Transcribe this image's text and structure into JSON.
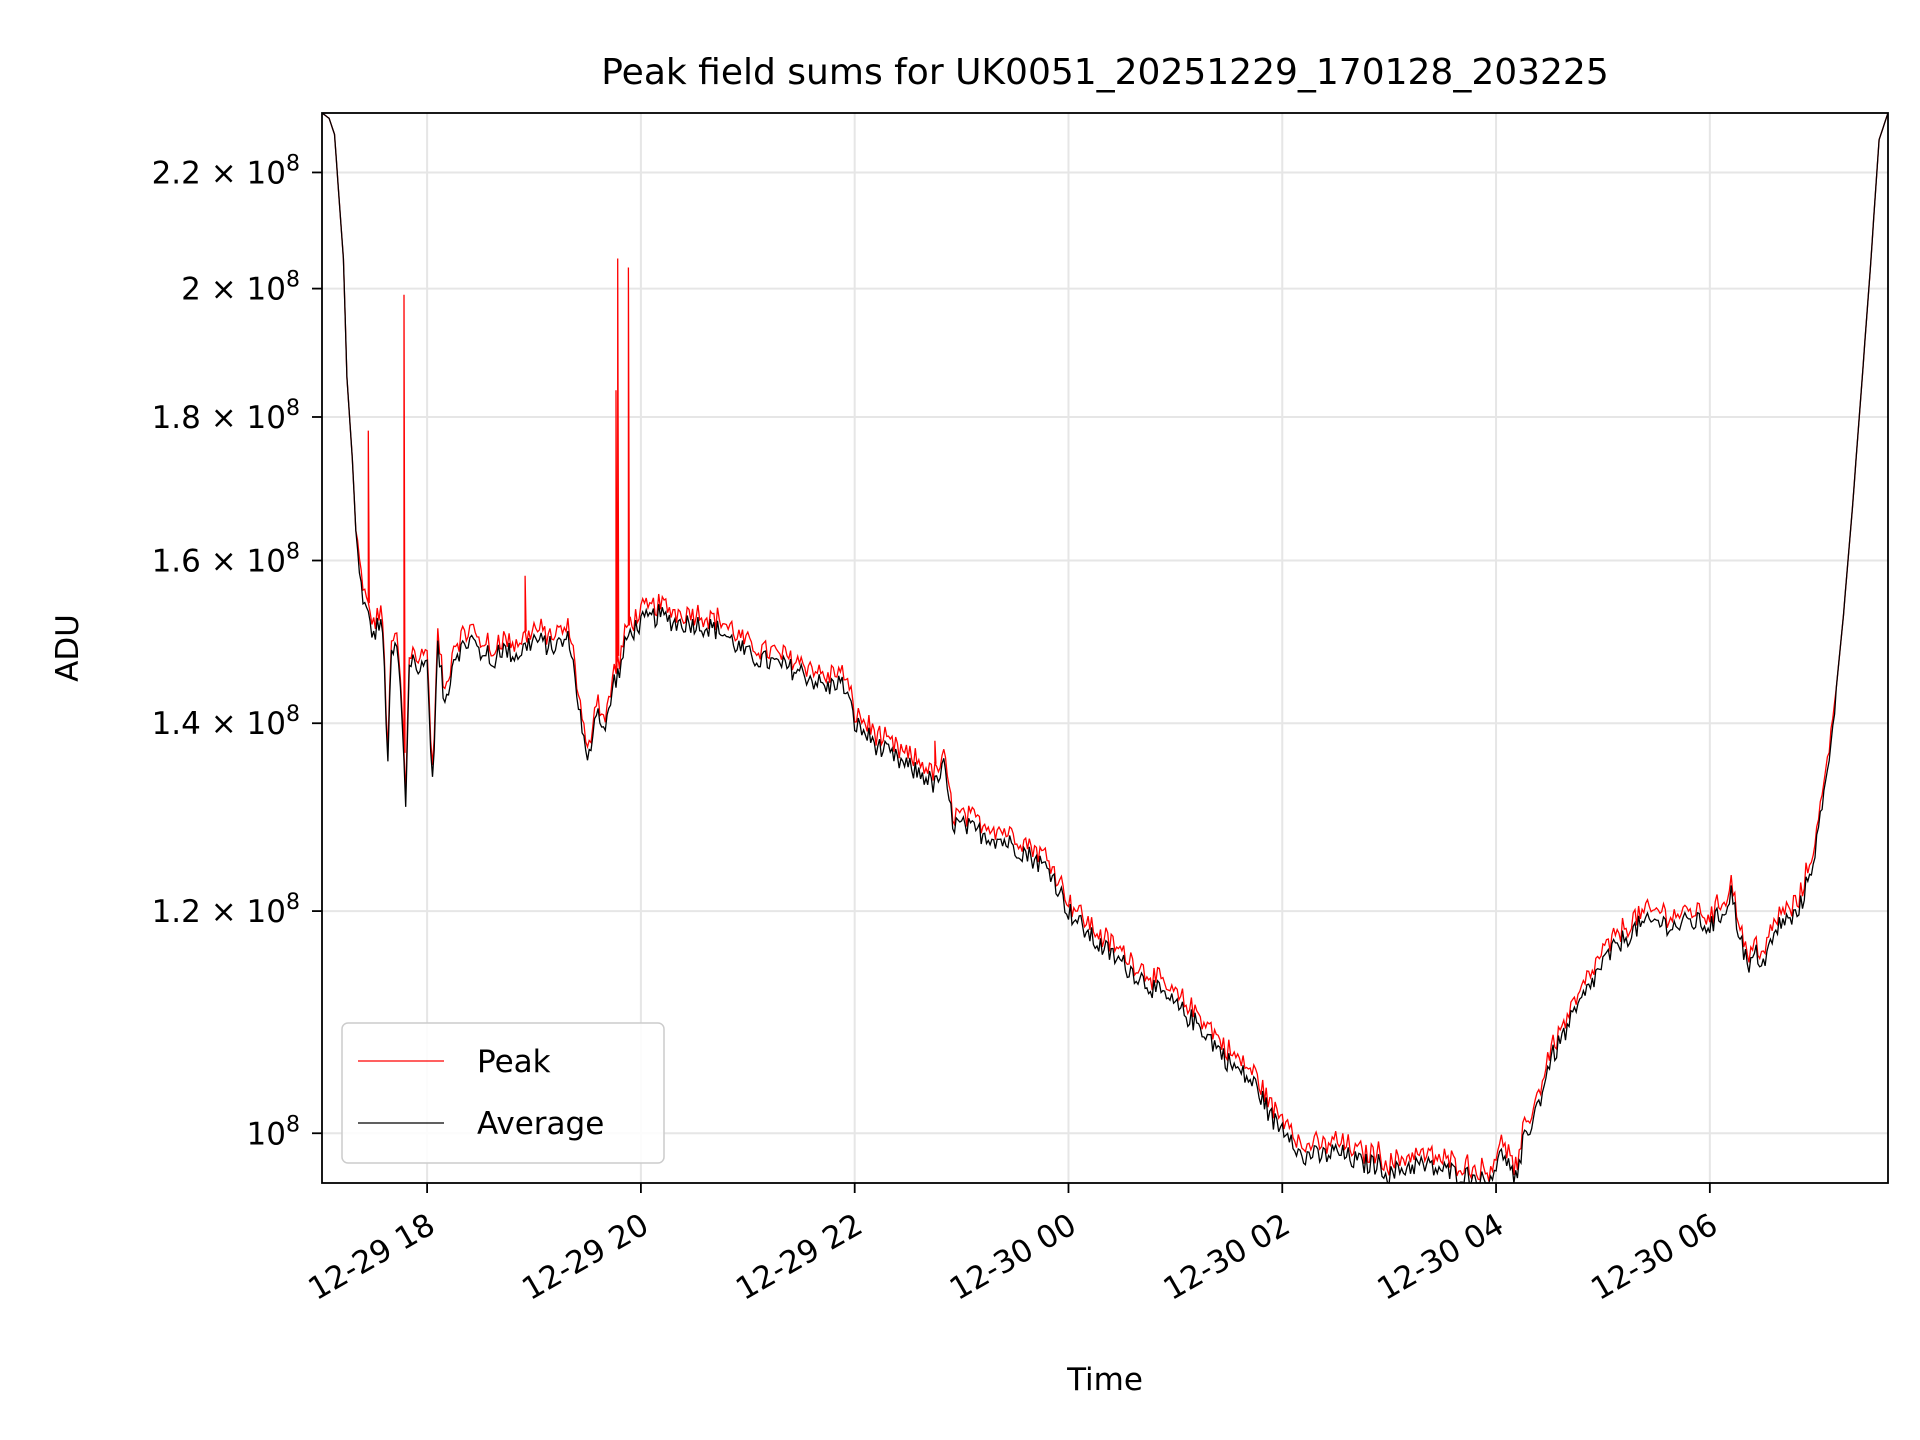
{
  "chart_data": {
    "type": "line",
    "title": "Peak field sums for UK0051_20251229_170128_203225",
    "xlabel": "Time",
    "ylabel": "ADU",
    "yscale": "log",
    "xlim": [
      "2025-12-29 17:01",
      "2025-12-30 07:40"
    ],
    "ylim": [
      96000000.0,
      231000000.0
    ],
    "grid": true,
    "legend_placement": "lower left",
    "x_ticks": [
      {
        "t": "2025-12-29 18:00",
        "label": "12-29 18"
      },
      {
        "t": "2025-12-29 20:00",
        "label": "12-29 20"
      },
      {
        "t": "2025-12-29 22:00",
        "label": "12-29 22"
      },
      {
        "t": "2025-12-30 00:00",
        "label": "12-30 00"
      },
      {
        "t": "2025-12-30 02:00",
        "label": "12-30 02"
      },
      {
        "t": "2025-12-30 04:00",
        "label": "12-30 04"
      },
      {
        "t": "2025-12-30 06:00",
        "label": "12-30 06"
      }
    ],
    "y_ticks": [
      {
        "value": 100000000.0,
        "mantissa": "",
        "exp": "8"
      },
      {
        "value": 120000000.0,
        "mantissa": "1.2",
        "exp": "8"
      },
      {
        "value": 140000000.0,
        "mantissa": "1.4",
        "exp": "8"
      },
      {
        "value": 160000000.0,
        "mantissa": "1.6",
        "exp": "8"
      },
      {
        "value": 180000000.0,
        "mantissa": "1.8",
        "exp": "8"
      },
      {
        "value": 200000000.0,
        "mantissa": "2",
        "exp": "8"
      },
      {
        "value": 220000000.0,
        "mantissa": "2.2",
        "exp": "8"
      }
    ],
    "series": [
      {
        "name": "Peak",
        "color": "#ff0000"
      },
      {
        "name": "Average",
        "color": "#000000"
      }
    ],
    "x": [
      "2025-12-29 17:01",
      "2025-12-29 17:05",
      "2025-12-29 17:08",
      "2025-12-29 17:10",
      "2025-12-29 17:13",
      "2025-12-29 17:15",
      "2025-12-29 17:18",
      "2025-12-29 17:20",
      "2025-12-29 17:22",
      "2025-12-29 17:25",
      "2025-12-29 17:28",
      "2025-12-29 17:30",
      "2025-12-29 17:32",
      "2025-12-29 17:35",
      "2025-12-29 17:38",
      "2025-12-29 17:40",
      "2025-12-29 17:43",
      "2025-12-29 17:45",
      "2025-12-29 17:48",
      "2025-12-29 17:50",
      "2025-12-29 17:53",
      "2025-12-29 17:55",
      "2025-12-29 17:58",
      "2025-12-29 18:00",
      "2025-12-29 18:03",
      "2025-12-29 18:06",
      "2025-12-29 18:10",
      "2025-12-29 18:15",
      "2025-12-29 18:20",
      "2025-12-29 18:25",
      "2025-12-29 18:28",
      "2025-12-29 18:30",
      "2025-12-29 18:33",
      "2025-12-29 18:36",
      "2025-12-29 18:40",
      "2025-12-29 18:50",
      "2025-12-29 19:00",
      "2025-12-29 19:10",
      "2025-12-29 19:20",
      "2025-12-29 19:30",
      "2025-12-29 19:35",
      "2025-12-29 19:40",
      "2025-12-29 19:45",
      "2025-12-29 19:48",
      "2025-12-29 19:50",
      "2025-12-29 19:52",
      "2025-12-29 19:55",
      "2025-12-29 20:00",
      "2025-12-29 20:10",
      "2025-12-29 20:20",
      "2025-12-29 20:30",
      "2025-12-29 20:45",
      "2025-12-29 21:00",
      "2025-12-29 21:15",
      "2025-12-29 21:30",
      "2025-12-29 21:45",
      "2025-12-29 21:50",
      "2025-12-29 21:55",
      "2025-12-29 22:00",
      "2025-12-29 22:15",
      "2025-12-29 22:30",
      "2025-12-29 22:40",
      "2025-12-29 22:45",
      "2025-12-29 22:50",
      "2025-12-29 22:55",
      "2025-12-29 23:10",
      "2025-12-29 23:25",
      "2025-12-29 23:35",
      "2025-12-29 23:50",
      "2025-12-30 00:00",
      "2025-12-30 00:15",
      "2025-12-30 00:30",
      "2025-12-30 00:45",
      "2025-12-30 01:00",
      "2025-12-30 01:15",
      "2025-12-30 01:30",
      "2025-12-30 01:45",
      "2025-12-30 01:55",
      "2025-12-30 02:05",
      "2025-12-30 02:12",
      "2025-12-30 02:15",
      "2025-12-30 02:20",
      "2025-12-30 02:30",
      "2025-12-30 02:45",
      "2025-12-30 02:55",
      "2025-12-30 03:00",
      "2025-12-30 03:05",
      "2025-12-30 03:15",
      "2025-12-30 03:30",
      "2025-12-30 03:45",
      "2025-12-30 03:55",
      "2025-12-30 04:00",
      "2025-12-30 04:05",
      "2025-12-30 04:08",
      "2025-12-30 04:12",
      "2025-12-30 04:15",
      "2025-12-30 04:20",
      "2025-12-30 04:25",
      "2025-12-30 04:30",
      "2025-12-30 04:40",
      "2025-12-30 04:50",
      "2025-12-30 05:00",
      "2025-12-30 05:10",
      "2025-12-30 05:20",
      "2025-12-30 05:30",
      "2025-12-30 05:40",
      "2025-12-30 05:50",
      "2025-12-30 06:00",
      "2025-12-30 06:08",
      "2025-12-30 06:12",
      "2025-12-30 06:15",
      "2025-12-30 06:18",
      "2025-12-30 06:22",
      "2025-12-30 06:25",
      "2025-12-30 06:30",
      "2025-12-30 06:35",
      "2025-12-30 06:40",
      "2025-12-30 06:45",
      "2025-12-30 06:50",
      "2025-12-30 06:55",
      "2025-12-30 07:00",
      "2025-12-30 07:05",
      "2025-12-30 07:10",
      "2025-12-30 07:15",
      "2025-12-30 07:20",
      "2025-12-30 07:25",
      "2025-12-30 07:30",
      "2025-12-30 07:35",
      "2025-12-30 07:40"
    ],
    "average": [
      231000000.0,
      230000000.0,
      227000000.0,
      218000000.0,
      205000000.0,
      186000000.0,
      174000000.0,
      164000000.0,
      158000000.0,
      154000000.0,
      152000000.0,
      150000000.0,
      152000000.0,
      151000000.0,
      136000000.0,
      148000000.0,
      149000000.0,
      144000000.0,
      131000000.0,
      147000000.0,
      148000000.0,
      145000000.0,
      148000000.0,
      147000000.0,
      133000000.0,
      149000000.0,
      142000000.0,
      148000000.0,
      149000000.0,
      150000000.0,
      149000000.0,
      148000000.0,
      149000000.0,
      146000000.0,
      149000000.0,
      148000000.0,
      150000000.0,
      149000000.0,
      150000000.0,
      135000000.0,
      142000000.0,
      139000000.0,
      145000000.0,
      146000000.0,
      148000000.0,
      150000000.0,
      151000000.0,
      152000000.0,
      153000000.0,
      152000000.0,
      152000000.0,
      151000000.0,
      148000000.0,
      147000000.0,
      146000000.0,
      144000000.0,
      145000000.0,
      144000000.0,
      140000000.0,
      137000000.0,
      135000000.0,
      134000000.0,
      133000000.0,
      135000000.0,
      129000000.0,
      128000000.0,
      127000000.0,
      126000000.0,
      124000000.0,
      120000000.0,
      117000000.0,
      115000000.0,
      113000000.0,
      111000000.0,
      109000000.0,
      106000000.0,
      104000000.0,
      101000000.0,
      100000000.0,
      97500000.0,
      98500000.0,
      98000000.0,
      98500000.0,
      97500000.0,
      97500000.0,
      96500000.0,
      97000000.0,
      97500000.0,
      97000000.0,
      96500000.0,
      96000000.0,
      97500000.0,
      98500000.0,
      97000000.0,
      96000000.0,
      99000000.0,
      101000000.0,
      103000000.0,
      106000000.0,
      109000000.0,
      112000000.0,
      115000000.0,
      117000000.0,
      118500000.0,
      119000000.0,
      118500000.0,
      119000000.0,
      118500000.0,
      120000000.0,
      122000000.0,
      119000000.0,
      117000000.0,
      114000000.0,
      116000000.0,
      115000000.0,
      117000000.0,
      119000000.0,
      119000000.0,
      120000000.0,
      123000000.0,
      127000000.0,
      133000000.0,
      142000000.0,
      153000000.0,
      167000000.0,
      184000000.0,
      203000000.0,
      226000000.0,
      231000000.0
    ],
    "peak_spikes": [
      {
        "t": "2025-12-29 17:27",
        "value": 178000000.0
      },
      {
        "t": "2025-12-29 17:47",
        "value": 199000000.0
      },
      {
        "t": "2025-12-29 18:55",
        "value": 158000000.0
      },
      {
        "t": "2025-12-29 19:46",
        "value": 184000000.0
      },
      {
        "t": "2025-12-29 19:47",
        "value": 205000000.0
      },
      {
        "t": "2025-12-29 19:53",
        "value": 203500000.0
      },
      {
        "t": "2025-12-29 22:45",
        "value": 138000000.0
      }
    ]
  }
}
